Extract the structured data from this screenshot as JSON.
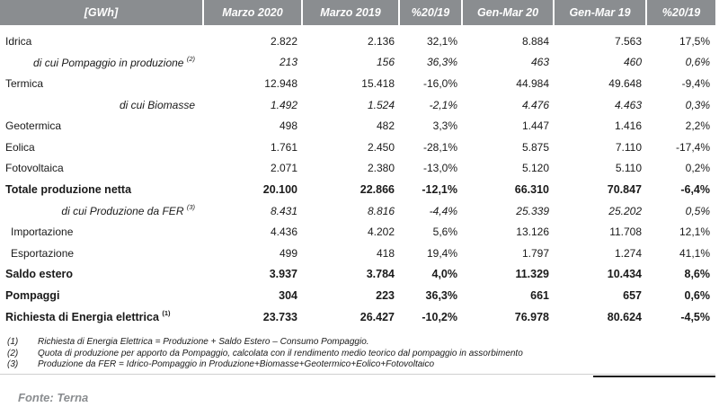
{
  "header": [
    "[GWh]",
    "Marzo 2020",
    "Marzo 2019",
    "%20/19",
    "Gen-Mar 20",
    "Gen-Mar 19",
    "%20/19"
  ],
  "rows": [
    {
      "label": "Idrica",
      "sup": "",
      "style": "normal",
      "v": [
        "2.822",
        "2.136",
        "32,1%",
        "8.884",
        "7.563",
        "17,5%"
      ]
    },
    {
      "label": "di cui Pompaggio in produzione",
      "sup": "(2)",
      "style": "sub",
      "v": [
        "213",
        "156",
        "36,3%",
        "463",
        "460",
        "0,6%"
      ]
    },
    {
      "label": "Termica",
      "sup": "",
      "style": "normal",
      "v": [
        "12.948",
        "15.418",
        "-16,0%",
        "44.984",
        "49.648",
        "-9,4%"
      ]
    },
    {
      "label": "di cui Biomasse",
      "sup": "",
      "style": "sub",
      "v": [
        "1.492",
        "1.524",
        "-2,1%",
        "4.476",
        "4.463",
        "0,3%"
      ]
    },
    {
      "label": "Geotermica",
      "sup": "",
      "style": "normal",
      "v": [
        "498",
        "482",
        "3,3%",
        "1.447",
        "1.416",
        "2,2%"
      ]
    },
    {
      "label": "Eolica",
      "sup": "",
      "style": "normal",
      "v": [
        "1.761",
        "2.450",
        "-28,1%",
        "5.875",
        "7.110",
        "-17,4%"
      ]
    },
    {
      "label": "Fotovoltaica",
      "sup": "",
      "style": "normal",
      "v": [
        "2.071",
        "2.380",
        "-13,0%",
        "5.120",
        "5.110",
        "0,2%"
      ]
    },
    {
      "label": "Totale produzione netta",
      "sup": "",
      "style": "bold",
      "v": [
        "20.100",
        "22.866",
        "-12,1%",
        "66.310",
        "70.847",
        "-6,4%"
      ]
    },
    {
      "label": "di cui Produzione da FER",
      "sup": "(3)",
      "style": "sub",
      "v": [
        "8.431",
        "8.816",
        "-4,4%",
        "25.339",
        "25.202",
        "0,5%"
      ]
    },
    {
      "label": "Importazione",
      "sup": "",
      "style": "indent",
      "v": [
        "4.436",
        "4.202",
        "5,6%",
        "13.126",
        "11.708",
        "12,1%"
      ]
    },
    {
      "label": "Esportazione",
      "sup": "",
      "style": "indent",
      "v": [
        "499",
        "418",
        "19,4%",
        "1.797",
        "1.274",
        "41,1%"
      ]
    },
    {
      "label": "Saldo estero",
      "sup": "",
      "style": "bold",
      "v": [
        "3.937",
        "3.784",
        "4,0%",
        "11.329",
        "10.434",
        "8,6%"
      ]
    },
    {
      "label": "Pompaggi",
      "sup": "",
      "style": "bold",
      "v": [
        "304",
        "223",
        "36,3%",
        "661",
        "657",
        "0,6%"
      ]
    },
    {
      "label": "Richiesta di Energia elettrica",
      "sup": "(1)",
      "style": "bold",
      "v": [
        "23.733",
        "26.427",
        "-10,2%",
        "76.978",
        "80.624",
        "-4,5%"
      ]
    }
  ],
  "notes": [
    {
      "n": "(1)",
      "text": "Richiesta di Energia Elettrica = Produzione + Saldo Estero – Consumo Pompaggio."
    },
    {
      "n": "(2)",
      "text": "Quota di produzione per apporto da Pompaggio, calcolata con il rendimento medio teorico dal pompaggio in assorbimento"
    },
    {
      "n": "(3)",
      "text": "Produzione da FER = Idrico-Pompaggio in Produzione+Biomasse+Geotermico+Eolico+Fotovoltaico"
    }
  ],
  "source": "Fonte: Terna"
}
